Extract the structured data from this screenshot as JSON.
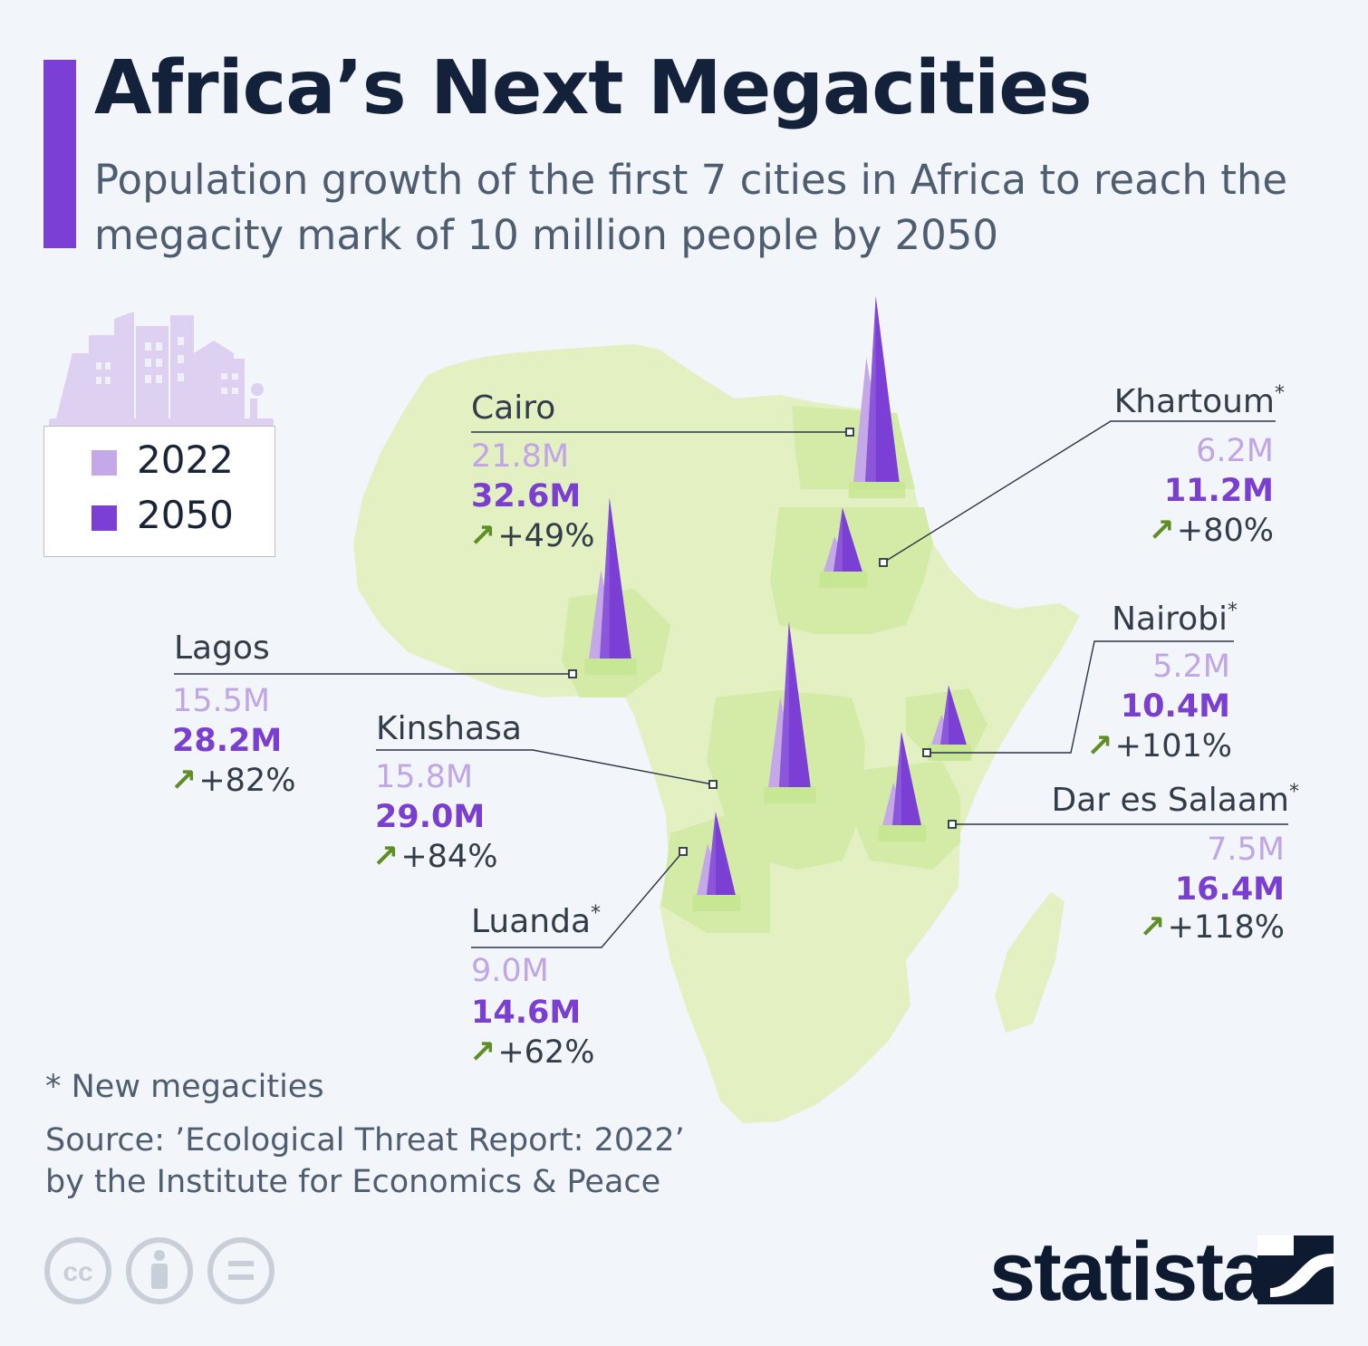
{
  "header": {
    "title": "Africa’s Next Megacities",
    "subtitle": "Population growth of the first 7 cities in Africa to reach the megacity mark of 10 million people by 2050"
  },
  "legend": {
    "items": [
      {
        "label": "2022",
        "color": "#c4a8e8"
      },
      {
        "label": "2050",
        "color": "#7b3fd6"
      }
    ]
  },
  "footer": {
    "footnote": "* New megacities",
    "source_line1": "Source: ’Ecological Threat Report: 2022’",
    "source_line2": "by the Institute for Economics & Peace",
    "brand": "statista",
    "license_icons": [
      "cc-icon",
      "attribution-icon",
      "no-derivatives-icon"
    ]
  },
  "colors": {
    "background": "#f2f5f9",
    "map_land": "#e3f0c2",
    "map_highlight": "#d3eba6",
    "accent": "#7b3fd6",
    "light_purple": "#c4a8e8",
    "arrow_green": "#5f8f24"
  },
  "chart_data": {
    "type": "map",
    "series": [
      {
        "name": "2022",
        "values": [
          21.8,
          15.5,
          15.8,
          9.0,
          6.2,
          5.2,
          7.5
        ]
      },
      {
        "name": "2050",
        "values": [
          32.6,
          28.2,
          29.0,
          14.6,
          11.2,
          10.4,
          16.4
        ]
      }
    ],
    "cities": [
      {
        "name": "Cairo",
        "new": false,
        "v2022": 21.8,
        "v2050": 32.6,
        "v2022_label": "21.8M",
        "v2050_label": "32.6M",
        "change": "+49%"
      },
      {
        "name": "Lagos",
        "new": false,
        "v2022": 15.5,
        "v2050": 28.2,
        "v2022_label": "15.5M",
        "v2050_label": "28.2M",
        "change": "+82%"
      },
      {
        "name": "Kinshasa",
        "new": false,
        "v2022": 15.8,
        "v2050": 29.0,
        "v2022_label": "15.8M",
        "v2050_label": "29.0M",
        "change": "+84%"
      },
      {
        "name": "Luanda",
        "new": true,
        "v2022": 9.0,
        "v2050": 14.6,
        "v2022_label": "9.0M",
        "v2050_label": "14.6M",
        "change": "+62%"
      },
      {
        "name": "Khartoum",
        "new": true,
        "v2022": 6.2,
        "v2050": 11.2,
        "v2022_label": "6.2M",
        "v2050_label": "11.2M",
        "change": "+80%"
      },
      {
        "name": "Nairobi",
        "new": true,
        "v2022": 5.2,
        "v2050": 10.4,
        "v2022_label": "5.2M",
        "v2050_label": "10.4M",
        "change": "+101%"
      },
      {
        "name": "Dar es Salaam",
        "new": true,
        "v2022": 7.5,
        "v2050": 16.4,
        "v2022_label": "7.5M",
        "v2050_label": "16.4M",
        "change": "+118%"
      }
    ],
    "unit": "M"
  }
}
